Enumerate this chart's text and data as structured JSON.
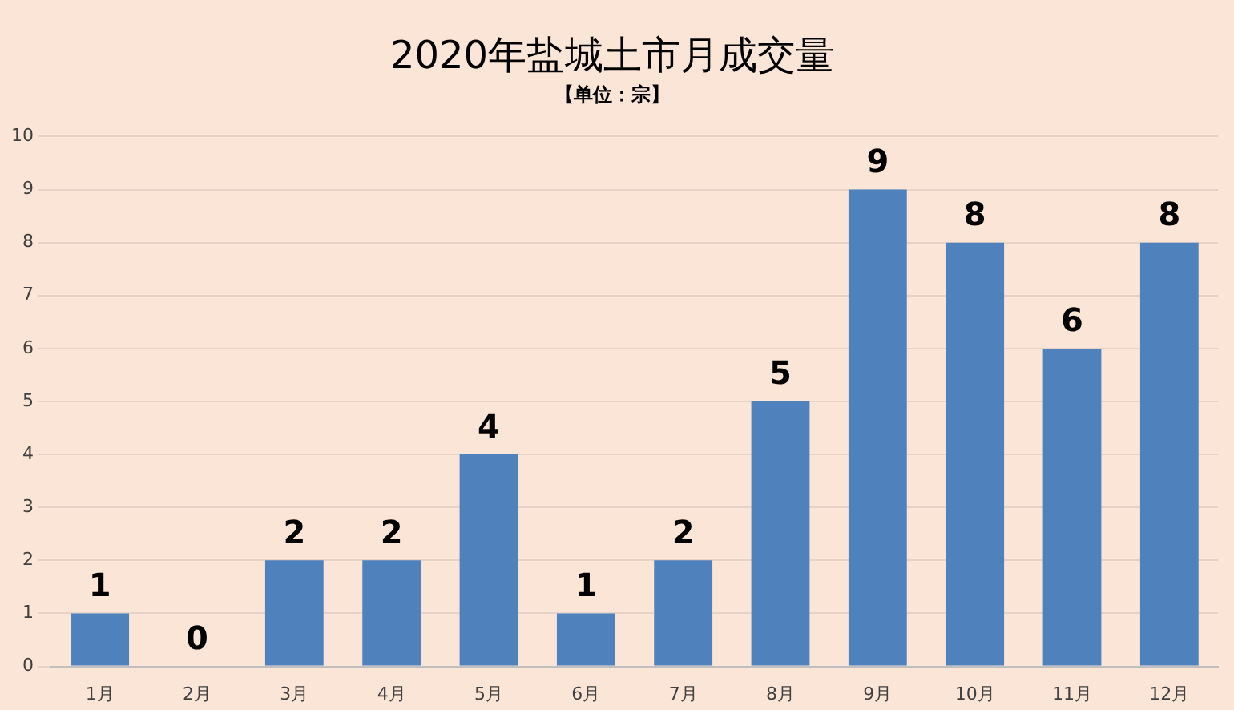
{
  "chart_data": {
    "type": "bar",
    "title": "2020年盐城土市月成交量",
    "subtitle": "【单位：宗】",
    "categories": [
      "1月",
      "2月",
      "3月",
      "4月",
      "5月",
      "6月",
      "7月",
      "8月",
      "9月",
      "10月",
      "11月",
      "12月"
    ],
    "values": [
      1,
      0,
      2,
      2,
      4,
      1,
      2,
      5,
      9,
      8,
      6,
      8
    ],
    "color": "#4f81bd",
    "ylim": [
      0,
      10
    ],
    "yticks": [
      0,
      1,
      2,
      3,
      4,
      5,
      6,
      7,
      8,
      9,
      10
    ],
    "grid": "y",
    "data_labels": true
  }
}
